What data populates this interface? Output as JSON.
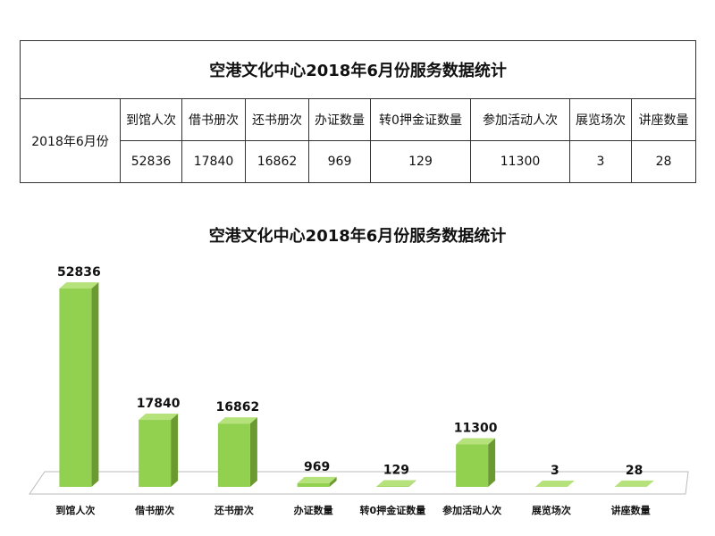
{
  "table": {
    "title": "空港文化中心2018年6月份服务数据统计",
    "row_label": "2018年6月份",
    "headers": [
      "到馆人次",
      "借书册次",
      "还书册次",
      "办证数量",
      "转0押金证数量",
      "参加活动人次",
      "展览场次",
      "讲座数量"
    ],
    "values": [
      52836,
      17840,
      16862,
      969,
      129,
      11300,
      3,
      28
    ]
  },
  "chart_data": {
    "type": "bar",
    "title": "空港文化中心2018年6月份服务数据统计",
    "categories": [
      "到馆人次",
      "借书册次",
      "还书册次",
      "办证数量",
      "转0押金证数量",
      "参加活动人次",
      "展览场次",
      "讲座数量"
    ],
    "values": [
      52836,
      17840,
      16862,
      969,
      129,
      11300,
      3,
      28
    ],
    "color": "#92d050"
  }
}
